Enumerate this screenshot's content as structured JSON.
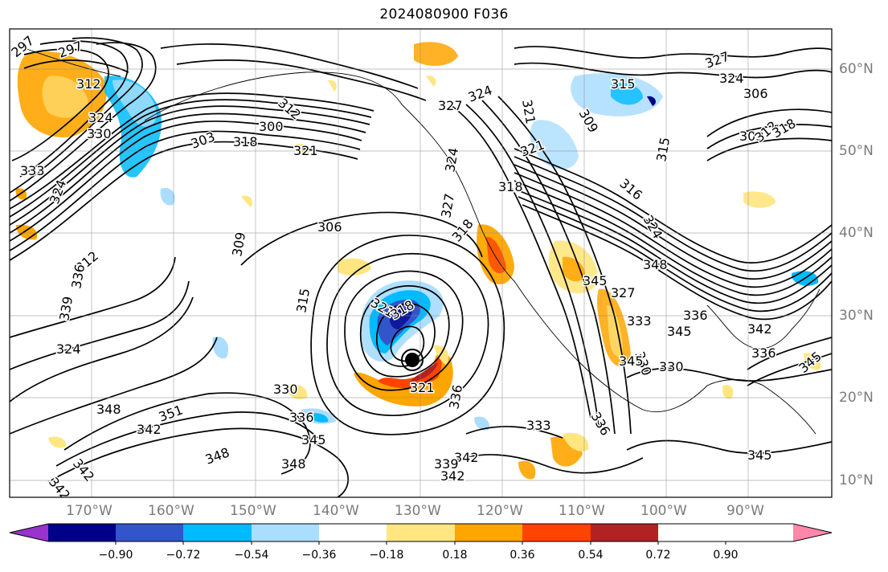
{
  "title": "2024080900 F036",
  "lat_labels": [
    "60°N",
    "50°N",
    "40°N",
    "30°N",
    "20°N",
    "10°N"
  ],
  "lon_labels": [
    "170°W",
    "160°W",
    "150°W",
    "140°W",
    "130°W",
    "120°W",
    "110°W",
    "100°W",
    "90°W"
  ],
  "colorbar": {
    "colors": [
      "#9933cc",
      "#000088",
      "#3355cc",
      "#00bbff",
      "#aaddff",
      "#ffffff",
      "#ffe680",
      "#ffa500",
      "#ff4400",
      "#b22222",
      "#ff88aa"
    ],
    "tick_labels": [
      "−0.90",
      "−0.72",
      "−0.54",
      "−0.36",
      "−0.18",
      "0.18",
      "0.36",
      "0.54",
      "0.72",
      "0.90"
    ],
    "extend": "both"
  },
  "contour_labels": [
    "297",
    "297",
    "312",
    "324",
    "330",
    "333",
    "324",
    "303",
    "300",
    "318",
    "321",
    "327",
    "324",
    "321",
    "321",
    "324",
    "318",
    "318",
    "327",
    "315",
    "309",
    "316",
    "324",
    "327",
    "324",
    "306",
    "303",
    "312",
    "318",
    "315",
    "312",
    "306",
    "309",
    "312",
    "321",
    "315",
    "318",
    "324",
    "321",
    "330",
    "336",
    "348",
    "351",
    "342",
    "345",
    "348",
    "348",
    "342",
    "342",
    "342",
    "336",
    "333",
    "336",
    "327",
    "333",
    "330",
    "330",
    "336",
    "345",
    "342",
    "336",
    "345",
    "345",
    "339",
    "342",
    "345",
    "339",
    "336",
    "345",
    "348"
  ],
  "features": {
    "storm_center": "hurricane-vortex"
  }
}
